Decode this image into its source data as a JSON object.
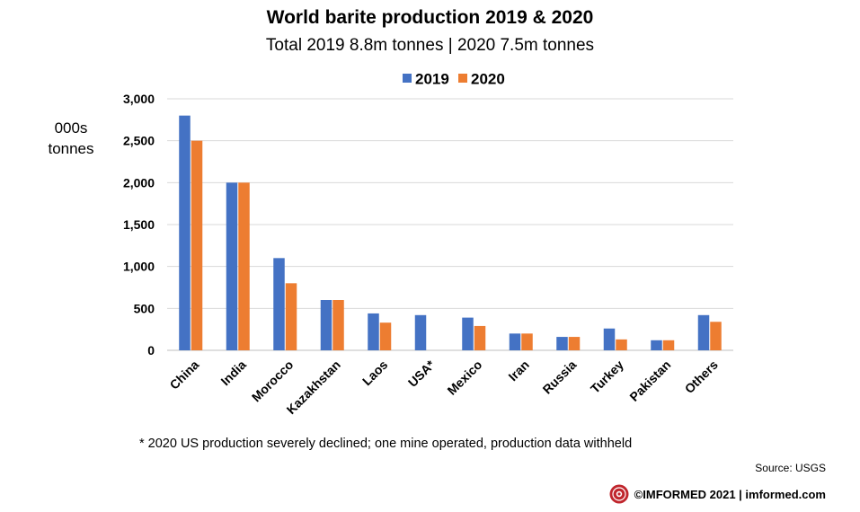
{
  "chart_data": {
    "type": "bar",
    "title": "World barite production 2019 & 2020",
    "subtitle": "Total 2019 8.8m tonnes | 2020 7.5m tonnes",
    "ylabel": "000s tonnes",
    "xlabel": "",
    "ylim": [
      0,
      3000
    ],
    "yticks": [
      0,
      500,
      1000,
      1500,
      2000,
      2500,
      3000
    ],
    "ytick_labels": [
      "0",
      "500",
      "1,000",
      "1,500",
      "2,000",
      "2,500",
      "3,000"
    ],
    "categories": [
      "China",
      "India",
      "Morocco",
      "Kazakhstan",
      "Laos",
      "USA*",
      "Mexico",
      "Iran",
      "Russia",
      "Turkey",
      "Pakistan",
      "Others"
    ],
    "series": [
      {
        "name": "2019",
        "color": "#4472C4",
        "values": [
          2800,
          2000,
          1100,
          600,
          440,
          420,
          390,
          200,
          160,
          260,
          120,
          420
        ]
      },
      {
        "name": "2020",
        "color": "#ED7D31",
        "values": [
          2500,
          2000,
          800,
          600,
          330,
          null,
          290,
          200,
          160,
          130,
          120,
          340
        ]
      }
    ],
    "grid": true,
    "legend_position": "top-center"
  },
  "footnote": "* 2020 US production severely declined; one mine operated, production data withheld",
  "source": "Source: USGS",
  "credit": "©IMFORMED 2021  |  imformed.com"
}
